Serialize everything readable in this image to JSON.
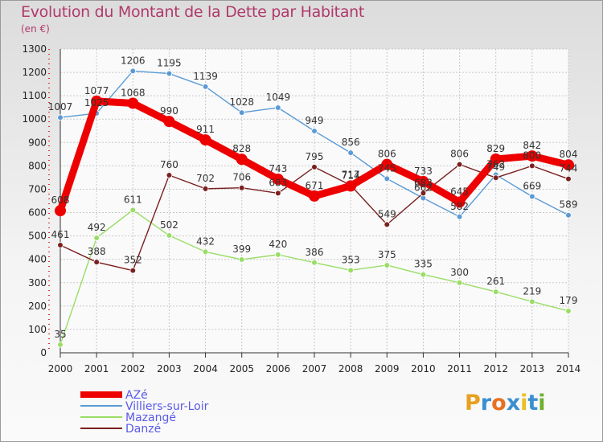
{
  "header": {
    "title": "Evolution du Montant de la Dette par Habitant",
    "subtitle": "(en €)"
  },
  "logo": {
    "letters": [
      "P",
      "r",
      "o",
      "x",
      "i",
      "t",
      "i"
    ],
    "colors": [
      "#e8a020",
      "#3a8fd0",
      "#e87020",
      "#3a8fd0",
      "#e8c020",
      "#3a8fd0",
      "#70b030"
    ]
  },
  "chart_data": {
    "type": "line",
    "x": [
      "2000",
      "2001",
      "2002",
      "2003",
      "2004",
      "2005",
      "2006",
      "2007",
      "2008",
      "2009",
      "2010",
      "2011",
      "2012",
      "2013",
      "2014"
    ],
    "ylim": [
      0,
      1300
    ],
    "yticks": [
      "0",
      "100",
      "200",
      "300",
      "400",
      "500",
      "600",
      "700",
      "800",
      "900",
      "1000",
      "1100",
      "1200",
      "1300"
    ],
    "grid": true,
    "series": [
      {
        "name": "AZé",
        "color": "#ee0000",
        "values": [
          608,
          1077,
          1068,
          990,
          911,
          828,
          743,
          671,
          714,
          806,
          733,
          645,
          829,
          842,
          804
        ],
        "labels": [
          "608",
          "1077",
          "1068",
          "990",
          "911",
          "828",
          "743",
          "671",
          "714",
          "806",
          "733",
          "645",
          "829",
          "842",
          "804"
        ]
      },
      {
        "name": "Villiers-sur-Loir",
        "color": "#5b9bd5",
        "values": [
          1007,
          1025,
          1206,
          1195,
          1139,
          1028,
          1049,
          949,
          856,
          745,
          662,
          582,
          762,
          669,
          589
        ],
        "labels": [
          "1007",
          "1025",
          "1206",
          "1195",
          "1139",
          "1028",
          "1049",
          "949",
          "856",
          "745",
          "662",
          "582",
          "762",
          "669",
          "589"
        ]
      },
      {
        "name": "Mazangé",
        "color": "#99dd66",
        "values": [
          35,
          492,
          611,
          502,
          432,
          399,
          420,
          386,
          353,
          375,
          335,
          300,
          261,
          219,
          179
        ],
        "labels": [
          "35",
          "492",
          "611",
          "502",
          "432",
          "399",
          "420",
          "386",
          "353",
          "375",
          "335",
          "300",
          "261",
          "219",
          "179"
        ]
      },
      {
        "name": "Danzé",
        "color": "#7a2020",
        "values": [
          461,
          388,
          352,
          760,
          702,
          706,
          683,
          795,
          717,
          549,
          683,
          806,
          749,
          800,
          744
        ],
        "labels": [
          "461",
          "388",
          "352",
          "760",
          "702",
          "706",
          "683",
          "795",
          "717",
          "549",
          "683",
          "806",
          "749",
          "800",
          "744"
        ]
      }
    ]
  }
}
